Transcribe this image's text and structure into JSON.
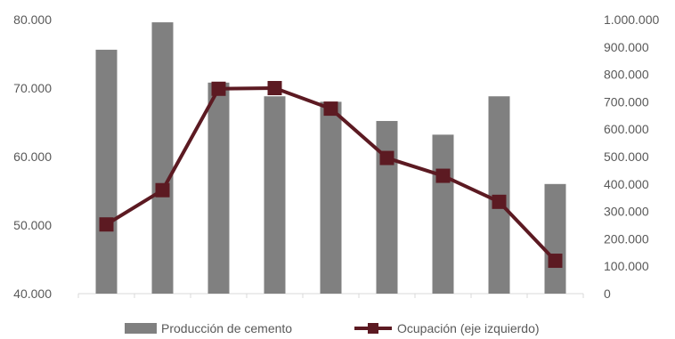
{
  "chart_data": {
    "type": "bar",
    "categories": [
      "",
      "",
      "",
      "",
      "",
      "",
      "",
      "",
      ""
    ],
    "series": [
      {
        "name": "Producción de cemento",
        "kind": "bar",
        "axis": "right",
        "color": "#808080",
        "values": [
          890000,
          990000,
          770000,
          720000,
          700000,
          630000,
          580000,
          720000,
          400000
        ]
      },
      {
        "name": "Ocupación (eje izquierdo)",
        "kind": "line",
        "axis": "left",
        "color": "#5c1a22",
        "values": [
          50100,
          55100,
          69900,
          70000,
          67000,
          59800,
          57200,
          53400,
          44800
        ]
      }
    ],
    "left_axis": {
      "ylim": [
        40000,
        80000
      ],
      "ticks": [
        {
          "value": 40000,
          "label": "40.000"
        },
        {
          "value": 50000,
          "label": "50.000"
        },
        {
          "value": 60000,
          "label": "60.000"
        },
        {
          "value": 70000,
          "label": "70.000"
        },
        {
          "value": 80000,
          "label": "80.000"
        }
      ]
    },
    "right_axis": {
      "ylim": [
        0,
        1000000
      ],
      "ticks": [
        {
          "value": 0,
          "label": "0"
        },
        {
          "value": 100000,
          "label": "100.000"
        },
        {
          "value": 200000,
          "label": "200.000"
        },
        {
          "value": 300000,
          "label": "300.000"
        },
        {
          "value": 400000,
          "label": "400.000"
        },
        {
          "value": 500000,
          "label": "500.000"
        },
        {
          "value": 600000,
          "label": "600.000"
        },
        {
          "value": 700000,
          "label": "700.000"
        },
        {
          "value": 800000,
          "label": "800.000"
        },
        {
          "value": 900000,
          "label": "900.000"
        },
        {
          "value": 1000000,
          "label": "1.000.000"
        }
      ]
    },
    "grid": false,
    "legend_position": "bottom"
  }
}
